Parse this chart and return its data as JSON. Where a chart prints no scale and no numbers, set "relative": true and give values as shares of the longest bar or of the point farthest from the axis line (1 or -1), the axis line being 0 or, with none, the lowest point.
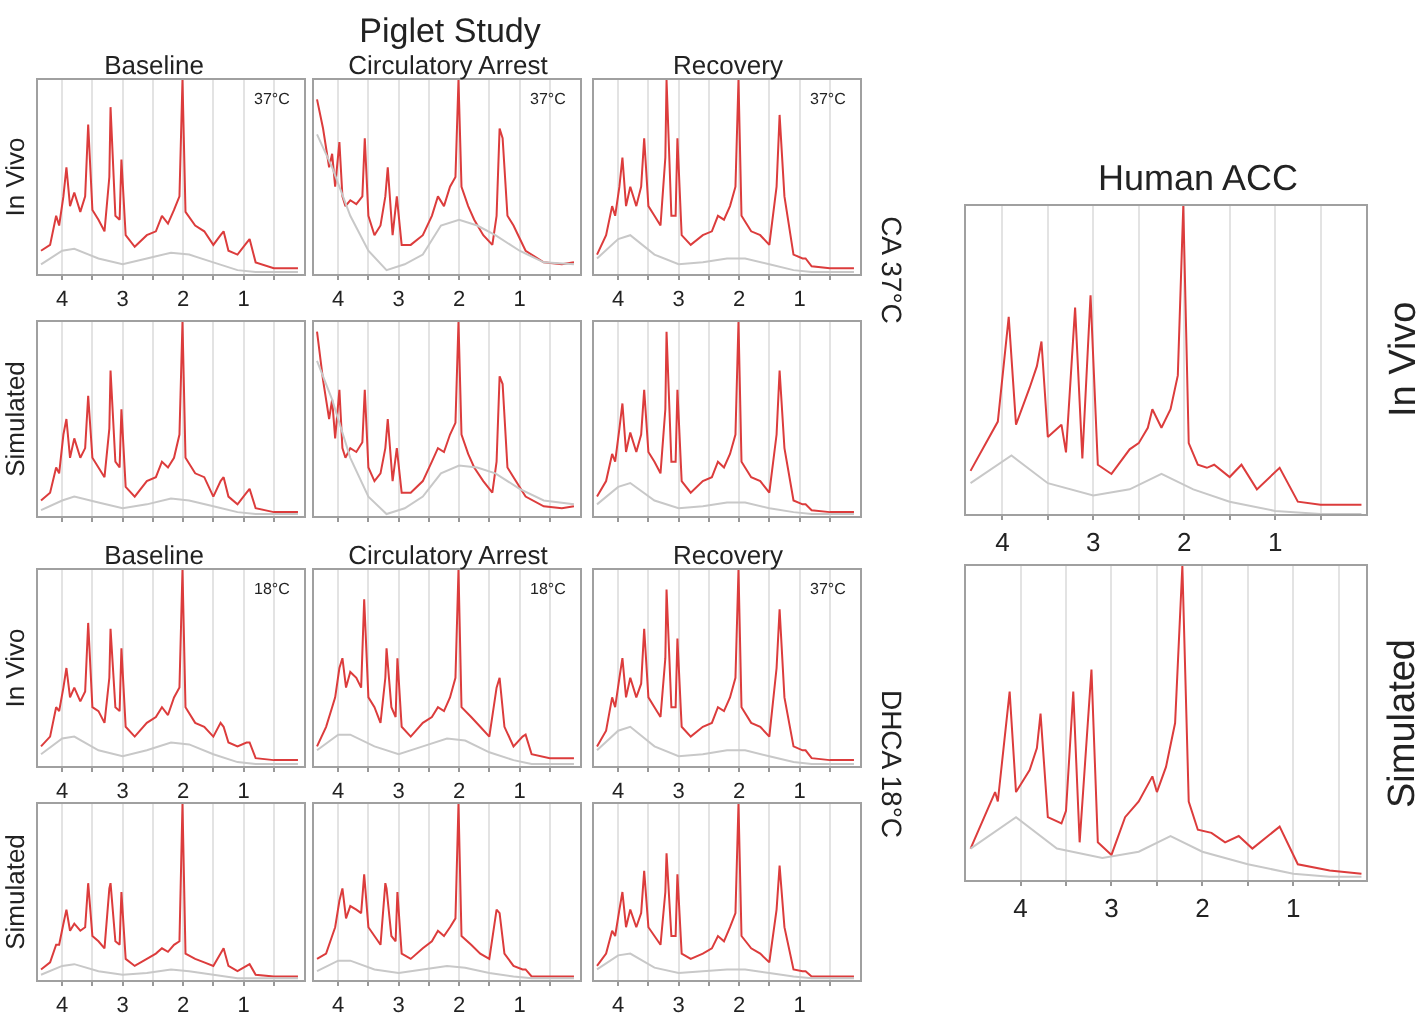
{
  "chart_data": [
    {
      "type": "other",
      "title": "Piglet Study",
      "annotations": [
        "CA 37°C",
        "DHCA 18°C"
      ]
    },
    {
      "type": "line",
      "title": "Baseline",
      "ylabel": "In Vivo",
      "annotations": [
        "37°C"
      ],
      "relative": true,
      "xlim": [
        4.4,
        0
      ],
      "xticks": [
        4,
        {
          "value": 3.5,
          "label": null
        },
        3,
        {
          "value": 2.5,
          "label": null
        },
        2,
        {
          "value": 1.5,
          "label": null
        },
        1,
        {
          "value": 0.5,
          "label": null
        }
      ],
      "grid": "x",
      "tick_labels": "x",
      "x": [
        4.35,
        4.2,
        4.1,
        4.05,
        3.98,
        3.93,
        3.87,
        3.8,
        3.7,
        3.62,
        3.57,
        3.5,
        3.4,
        3.3,
        3.22,
        3.2,
        3.12,
        3.05,
        3.02,
        2.95,
        2.8,
        2.6,
        2.45,
        2.35,
        2.25,
        2.15,
        2.06,
        2.01,
        1.96,
        1.8,
        1.65,
        1.5,
        1.38,
        1.33,
        1.25,
        1.1,
        0.95,
        0.9,
        0.8,
        0.5,
        0.1
      ],
      "series": [
        {
          "color": "#dc3c3c",
          "values": [
            0.12,
            0.15,
            0.3,
            0.25,
            0.4,
            0.55,
            0.35,
            0.42,
            0.32,
            0.4,
            0.77,
            0.33,
            0.28,
            0.22,
            0.5,
            0.86,
            0.3,
            0.28,
            0.59,
            0.2,
            0.14,
            0.2,
            0.22,
            0.3,
            0.26,
            0.33,
            0.4,
            1.0,
            0.32,
            0.25,
            0.22,
            0.15,
            0.2,
            0.22,
            0.12,
            0.1,
            0.16,
            0.18,
            0.06,
            0.03,
            0.03
          ]
        },
        {
          "color": "#c8c8c8",
          "x": [
            4.35,
            4.0,
            3.8,
            3.4,
            3.0,
            2.6,
            2.2,
            1.9,
            1.5,
            1.1,
            0.8,
            0.1
          ],
          "values": [
            0.05,
            0.12,
            0.13,
            0.08,
            0.05,
            0.08,
            0.11,
            0.1,
            0.06,
            0.02,
            0.01,
            0.01
          ]
        }
      ]
    },
    {
      "type": "line",
      "title": "Circulatory Arrest",
      "annotations": [
        "37°C"
      ],
      "relative": true,
      "xlim": [
        4.4,
        0
      ],
      "xticks": [
        4,
        {
          "value": 3.5,
          "label": null
        },
        3,
        {
          "value": 2.5,
          "label": null
        },
        2,
        {
          "value": 1.5,
          "label": null
        },
        1,
        {
          "value": 0.5,
          "label": null
        }
      ],
      "grid": "x",
      "tick_labels": "x",
      "x": [
        4.35,
        4.25,
        4.15,
        4.1,
        4.05,
        3.98,
        3.93,
        3.88,
        3.8,
        3.7,
        3.6,
        3.56,
        3.5,
        3.4,
        3.3,
        3.22,
        3.18,
        3.1,
        3.03,
        2.95,
        2.8,
        2.6,
        2.45,
        2.35,
        2.25,
        2.15,
        2.06,
        2.01,
        1.96,
        1.85,
        1.75,
        1.6,
        1.45,
        1.38,
        1.33,
        1.28,
        1.2,
        1.1,
        0.9,
        0.6,
        0.3,
        0.1
      ],
      "series": [
        {
          "color": "#dc3c3c",
          "values": [
            0.9,
            0.75,
            0.55,
            0.62,
            0.45,
            0.68,
            0.4,
            0.35,
            0.38,
            0.36,
            0.4,
            0.7,
            0.3,
            0.2,
            0.25,
            0.4,
            0.55,
            0.2,
            0.4,
            0.15,
            0.15,
            0.2,
            0.3,
            0.4,
            0.35,
            0.45,
            0.5,
            1.0,
            0.45,
            0.35,
            0.28,
            0.2,
            0.15,
            0.3,
            0.75,
            0.7,
            0.3,
            0.25,
            0.12,
            0.06,
            0.05,
            0.06
          ]
        },
        {
          "color": "#c8c8c8",
          "x": [
            4.35,
            4.1,
            3.8,
            3.5,
            3.2,
            2.9,
            2.6,
            2.3,
            2.0,
            1.7,
            1.4,
            1.0,
            0.6,
            0.1
          ],
          "values": [
            0.72,
            0.55,
            0.3,
            0.12,
            0.02,
            0.05,
            0.1,
            0.25,
            0.28,
            0.25,
            0.2,
            0.12,
            0.06,
            0.05
          ]
        }
      ]
    },
    {
      "type": "line",
      "title": "Recovery",
      "annotations": [
        "37°C"
      ],
      "relative": true,
      "xlim": [
        4.4,
        0
      ],
      "xticks": [
        4,
        {
          "value": 3.5,
          "label": null
        },
        3,
        {
          "value": 2.5,
          "label": null
        },
        2,
        {
          "value": 1.5,
          "label": null
        },
        1,
        {
          "value": 0.5,
          "label": null
        }
      ],
      "grid": "x",
      "tick_labels": "x",
      "x": [
        4.35,
        4.2,
        4.1,
        4.05,
        3.98,
        3.93,
        3.87,
        3.8,
        3.7,
        3.62,
        3.57,
        3.5,
        3.4,
        3.3,
        3.22,
        3.2,
        3.12,
        3.05,
        3.02,
        2.95,
        2.8,
        2.6,
        2.45,
        2.35,
        2.25,
        2.15,
        2.06,
        2.01,
        1.96,
        1.8,
        1.65,
        1.5,
        1.38,
        1.33,
        1.25,
        1.1,
        0.95,
        0.9,
        0.8,
        0.5,
        0.1
      ],
      "series": [
        {
          "color": "#dc3c3c",
          "values": [
            0.1,
            0.2,
            0.35,
            0.3,
            0.45,
            0.6,
            0.35,
            0.45,
            0.35,
            0.45,
            0.7,
            0.35,
            0.3,
            0.25,
            0.6,
            1.0,
            0.3,
            0.3,
            0.7,
            0.2,
            0.15,
            0.2,
            0.22,
            0.3,
            0.28,
            0.35,
            0.45,
            1.0,
            0.3,
            0.22,
            0.2,
            0.15,
            0.45,
            0.82,
            0.4,
            0.1,
            0.08,
            0.08,
            0.04,
            0.03,
            0.03
          ]
        },
        {
          "color": "#c8c8c8",
          "x": [
            4.35,
            4.0,
            3.8,
            3.4,
            3.0,
            2.6,
            2.2,
            1.9,
            1.5,
            1.1,
            0.8,
            0.1
          ],
          "values": [
            0.08,
            0.18,
            0.2,
            0.1,
            0.05,
            0.06,
            0.08,
            0.08,
            0.05,
            0.02,
            0.01,
            0.01
          ]
        }
      ]
    },
    {
      "type": "line",
      "ylabel": "Simulated",
      "relative": true,
      "xlim": [
        4.4,
        0
      ],
      "xticks": [
        4,
        {
          "value": 3.5,
          "label": null
        },
        3,
        {
          "value": 2.5,
          "label": null
        },
        2,
        {
          "value": 1.5,
          "label": null
        },
        1,
        {
          "value": 0.5,
          "label": null
        }
      ],
      "grid": "x",
      "tick_labels": false,
      "x": [
        4.35,
        4.2,
        4.1,
        4.05,
        3.98,
        3.93,
        3.87,
        3.8,
        3.7,
        3.62,
        3.57,
        3.5,
        3.4,
        3.3,
        3.22,
        3.2,
        3.12,
        3.05,
        3.02,
        2.95,
        2.8,
        2.6,
        2.45,
        2.35,
        2.25,
        2.15,
        2.06,
        2.01,
        1.96,
        1.8,
        1.65,
        1.5,
        1.38,
        1.33,
        1.25,
        1.1,
        0.95,
        0.9,
        0.8,
        0.5,
        0.1
      ],
      "series": [
        {
          "color": "#dc3c3c",
          "values": [
            0.08,
            0.12,
            0.25,
            0.22,
            0.42,
            0.5,
            0.3,
            0.4,
            0.3,
            0.35,
            0.62,
            0.3,
            0.25,
            0.2,
            0.45,
            0.75,
            0.28,
            0.25,
            0.55,
            0.15,
            0.1,
            0.18,
            0.2,
            0.28,
            0.25,
            0.3,
            0.42,
            1.0,
            0.3,
            0.22,
            0.2,
            0.1,
            0.18,
            0.2,
            0.1,
            0.06,
            0.12,
            0.14,
            0.04,
            0.02,
            0.02
          ]
        },
        {
          "color": "#c8c8c8",
          "x": [
            4.35,
            4.0,
            3.8,
            3.4,
            3.0,
            2.6,
            2.2,
            1.9,
            1.5,
            1.1,
            0.8,
            0.1
          ],
          "values": [
            0.03,
            0.08,
            0.1,
            0.07,
            0.04,
            0.06,
            0.09,
            0.08,
            0.05,
            0.02,
            0.01,
            0.01
          ]
        }
      ]
    },
    {
      "type": "line",
      "relative": true,
      "xlim": [
        4.4,
        0
      ],
      "xticks": [
        4,
        {
          "value": 3.5,
          "label": null
        },
        3,
        {
          "value": 2.5,
          "label": null
        },
        2,
        {
          "value": 1.5,
          "label": null
        },
        1,
        {
          "value": 0.5,
          "label": null
        }
      ],
      "grid": "x",
      "tick_labels": false,
      "x": [
        4.35,
        4.25,
        4.15,
        4.1,
        4.05,
        3.98,
        3.93,
        3.88,
        3.8,
        3.7,
        3.6,
        3.56,
        3.5,
        3.4,
        3.3,
        3.22,
        3.18,
        3.1,
        3.03,
        2.95,
        2.8,
        2.6,
        2.45,
        2.35,
        2.25,
        2.15,
        2.06,
        2.01,
        1.96,
        1.85,
        1.75,
        1.6,
        1.45,
        1.38,
        1.33,
        1.28,
        1.2,
        1.1,
        0.9,
        0.6,
        0.3,
        0.1
      ],
      "series": [
        {
          "color": "#dc3c3c",
          "values": [
            0.95,
            0.7,
            0.5,
            0.6,
            0.4,
            0.65,
            0.35,
            0.3,
            0.35,
            0.33,
            0.38,
            0.65,
            0.25,
            0.18,
            0.22,
            0.35,
            0.5,
            0.18,
            0.35,
            0.12,
            0.12,
            0.18,
            0.28,
            0.35,
            0.33,
            0.42,
            0.48,
            1.0,
            0.42,
            0.32,
            0.25,
            0.18,
            0.12,
            0.28,
            0.72,
            0.68,
            0.25,
            0.2,
            0.1,
            0.05,
            0.04,
            0.05
          ]
        },
        {
          "color": "#c8c8c8",
          "x": [
            4.35,
            4.1,
            3.8,
            3.5,
            3.2,
            2.9,
            2.6,
            2.3,
            2.0,
            1.7,
            1.4,
            1.0,
            0.6,
            0.1
          ],
          "values": [
            0.8,
            0.6,
            0.3,
            0.1,
            0.01,
            0.04,
            0.1,
            0.22,
            0.26,
            0.25,
            0.22,
            0.14,
            0.08,
            0.06
          ]
        }
      ]
    },
    {
      "type": "line",
      "relative": true,
      "xlim": [
        4.4,
        0
      ],
      "xticks": [
        4,
        {
          "value": 3.5,
          "label": null
        },
        3,
        {
          "value": 2.5,
          "label": null
        },
        2,
        {
          "value": 1.5,
          "label": null
        },
        1,
        {
          "value": 0.5,
          "label": null
        }
      ],
      "grid": "x",
      "tick_labels": false,
      "x": [
        4.35,
        4.2,
        4.1,
        4.05,
        3.98,
        3.93,
        3.87,
        3.8,
        3.7,
        3.62,
        3.57,
        3.5,
        3.4,
        3.3,
        3.22,
        3.2,
        3.12,
        3.05,
        3.02,
        2.95,
        2.8,
        2.6,
        2.45,
        2.35,
        2.25,
        2.15,
        2.06,
        2.01,
        1.96,
        1.8,
        1.65,
        1.5,
        1.38,
        1.33,
        1.25,
        1.1,
        0.95,
        0.9,
        0.8,
        0.5,
        0.1
      ],
      "series": [
        {
          "color": "#dc3c3c",
          "values": [
            0.1,
            0.18,
            0.32,
            0.28,
            0.45,
            0.58,
            0.33,
            0.43,
            0.33,
            0.42,
            0.65,
            0.33,
            0.28,
            0.22,
            0.55,
            0.95,
            0.28,
            0.28,
            0.65,
            0.18,
            0.12,
            0.18,
            0.2,
            0.28,
            0.25,
            0.32,
            0.42,
            1.0,
            0.28,
            0.2,
            0.18,
            0.12,
            0.42,
            0.75,
            0.35,
            0.08,
            0.06,
            0.06,
            0.03,
            0.02,
            0.02
          ]
        },
        {
          "color": "#c8c8c8",
          "x": [
            4.35,
            4.0,
            3.8,
            3.4,
            3.0,
            2.6,
            2.2,
            1.9,
            1.5,
            1.1,
            0.8,
            0.1
          ],
          "values": [
            0.06,
            0.15,
            0.17,
            0.08,
            0.04,
            0.05,
            0.07,
            0.07,
            0.04,
            0.02,
            0.01,
            0.01
          ]
        }
      ]
    },
    {
      "type": "line",
      "title": "Baseline",
      "ylabel": "In Vivo",
      "annotations": [
        "18°C"
      ],
      "relative": true,
      "xlim": [
        4.4,
        0
      ],
      "xticks": [
        4,
        {
          "value": 3.5,
          "label": null
        },
        3,
        {
          "value": 2.5,
          "label": null
        },
        2,
        {
          "value": 1.5,
          "label": null
        },
        1,
        {
          "value": 0.5,
          "label": null
        }
      ],
      "grid": "x",
      "tick_labels": "x",
      "x": [
        4.35,
        4.2,
        4.1,
        4.05,
        3.98,
        3.93,
        3.87,
        3.8,
        3.7,
        3.62,
        3.57,
        3.5,
        3.4,
        3.3,
        3.22,
        3.2,
        3.12,
        3.05,
        3.02,
        2.95,
        2.8,
        2.6,
        2.45,
        2.35,
        2.25,
        2.15,
        2.06,
        2.01,
        1.96,
        1.8,
        1.65,
        1.5,
        1.38,
        1.33,
        1.25,
        1.1,
        0.95,
        0.9,
        0.8,
        0.5,
        0.1
      ],
      "series": [
        {
          "color": "#dc3c3c",
          "values": [
            0.1,
            0.15,
            0.3,
            0.28,
            0.4,
            0.5,
            0.35,
            0.4,
            0.33,
            0.38,
            0.73,
            0.3,
            0.28,
            0.22,
            0.45,
            0.7,
            0.3,
            0.28,
            0.6,
            0.2,
            0.15,
            0.22,
            0.25,
            0.3,
            0.26,
            0.35,
            0.4,
            1.0,
            0.3,
            0.22,
            0.2,
            0.15,
            0.22,
            0.2,
            0.12,
            0.1,
            0.12,
            0.12,
            0.04,
            0.03,
            0.03
          ]
        },
        {
          "color": "#c8c8c8",
          "x": [
            4.35,
            4.0,
            3.8,
            3.4,
            3.0,
            2.6,
            2.2,
            1.9,
            1.5,
            1.1,
            0.8,
            0.1
          ],
          "values": [
            0.06,
            0.14,
            0.15,
            0.08,
            0.05,
            0.08,
            0.12,
            0.11,
            0.06,
            0.02,
            0.01,
            0.01
          ]
        }
      ]
    },
    {
      "type": "line",
      "title": "Circulatory Arrest",
      "annotations": [
        "18°C"
      ],
      "relative": true,
      "xlim": [
        4.4,
        0
      ],
      "xticks": [
        4,
        {
          "value": 3.5,
          "label": null
        },
        3,
        {
          "value": 2.5,
          "label": null
        },
        2,
        {
          "value": 1.5,
          "label": null
        },
        1,
        {
          "value": 0.5,
          "label": null
        }
      ],
      "grid": "x",
      "tick_labels": "x",
      "x": [
        4.35,
        4.2,
        4.1,
        4.05,
        3.98,
        3.93,
        3.87,
        3.8,
        3.7,
        3.62,
        3.57,
        3.5,
        3.4,
        3.3,
        3.22,
        3.2,
        3.12,
        3.05,
        3.02,
        2.95,
        2.8,
        2.6,
        2.45,
        2.35,
        2.25,
        2.15,
        2.06,
        2.01,
        1.96,
        1.8,
        1.65,
        1.5,
        1.38,
        1.33,
        1.25,
        1.1,
        0.95,
        0.9,
        0.8,
        0.5,
        0.1
      ],
      "series": [
        {
          "color": "#dc3c3c",
          "values": [
            0.1,
            0.2,
            0.3,
            0.35,
            0.5,
            0.55,
            0.4,
            0.48,
            0.45,
            0.4,
            0.85,
            0.35,
            0.3,
            0.22,
            0.45,
            0.6,
            0.3,
            0.25,
            0.55,
            0.2,
            0.15,
            0.22,
            0.25,
            0.3,
            0.28,
            0.35,
            0.45,
            1.0,
            0.3,
            0.25,
            0.2,
            0.15,
            0.4,
            0.45,
            0.2,
            0.1,
            0.15,
            0.16,
            0.06,
            0.04,
            0.04
          ]
        },
        {
          "color": "#c8c8c8",
          "x": [
            4.35,
            4.0,
            3.8,
            3.4,
            3.0,
            2.6,
            2.2,
            1.9,
            1.5,
            1.1,
            0.8,
            0.1
          ],
          "values": [
            0.08,
            0.16,
            0.16,
            0.1,
            0.06,
            0.1,
            0.14,
            0.13,
            0.07,
            0.03,
            0.01,
            0.01
          ]
        }
      ]
    },
    {
      "type": "line",
      "title": "Recovery",
      "annotations": [
        "37°C"
      ],
      "relative": true,
      "xlim": [
        4.4,
        0
      ],
      "xticks": [
        4,
        {
          "value": 3.5,
          "label": null
        },
        3,
        {
          "value": 2.5,
          "label": null
        },
        2,
        {
          "value": 1.5,
          "label": null
        },
        1,
        {
          "value": 0.5,
          "label": null
        }
      ],
      "grid": "x",
      "tick_labels": "x",
      "x": [
        4.35,
        4.2,
        4.1,
        4.05,
        3.98,
        3.93,
        3.87,
        3.8,
        3.7,
        3.62,
        3.57,
        3.5,
        3.4,
        3.3,
        3.22,
        3.2,
        3.12,
        3.05,
        3.02,
        2.95,
        2.8,
        2.6,
        2.45,
        2.35,
        2.25,
        2.15,
        2.06,
        2.01,
        1.96,
        1.8,
        1.65,
        1.5,
        1.38,
        1.33,
        1.25,
        1.1,
        0.95,
        0.9,
        0.8,
        0.5,
        0.1
      ],
      "series": [
        {
          "color": "#dc3c3c",
          "values": [
            0.1,
            0.18,
            0.35,
            0.3,
            0.45,
            0.55,
            0.35,
            0.45,
            0.35,
            0.42,
            0.7,
            0.35,
            0.3,
            0.25,
            0.55,
            0.9,
            0.3,
            0.3,
            0.65,
            0.2,
            0.15,
            0.2,
            0.22,
            0.3,
            0.28,
            0.35,
            0.45,
            1.0,
            0.3,
            0.22,
            0.2,
            0.15,
            0.5,
            0.8,
            0.35,
            0.1,
            0.08,
            0.08,
            0.04,
            0.03,
            0.03
          ]
        },
        {
          "color": "#c8c8c8",
          "x": [
            4.35,
            4.0,
            3.8,
            3.4,
            3.0,
            2.6,
            2.2,
            1.9,
            1.5,
            1.1,
            0.8,
            0.1
          ],
          "values": [
            0.08,
            0.18,
            0.2,
            0.1,
            0.05,
            0.06,
            0.08,
            0.08,
            0.05,
            0.02,
            0.01,
            0.01
          ]
        }
      ]
    },
    {
      "type": "line",
      "ylabel": "Simulated",
      "relative": true,
      "xlim": [
        4.4,
        0
      ],
      "xticks": [
        4,
        {
          "value": 3.5,
          "label": null
        },
        3,
        {
          "value": 2.5,
          "label": null
        },
        2,
        {
          "value": 1.5,
          "label": null
        },
        1,
        {
          "value": 0.5,
          "label": null
        }
      ],
      "grid": "x",
      "tick_labels": "x",
      "x": [
        4.35,
        4.2,
        4.1,
        4.05,
        3.98,
        3.93,
        3.87,
        3.8,
        3.7,
        3.62,
        3.57,
        3.5,
        3.4,
        3.3,
        3.22,
        3.2,
        3.12,
        3.05,
        3.02,
        2.95,
        2.8,
        2.6,
        2.45,
        2.35,
        2.25,
        2.15,
        2.06,
        2.01,
        1.96,
        1.8,
        1.65,
        1.5,
        1.38,
        1.33,
        1.25,
        1.1,
        0.95,
        0.9,
        0.8,
        0.5,
        0.1
      ],
      "series": [
        {
          "color": "#dc3c3c",
          "values": [
            0.06,
            0.1,
            0.2,
            0.2,
            0.32,
            0.4,
            0.28,
            0.32,
            0.28,
            0.3,
            0.55,
            0.25,
            0.22,
            0.18,
            0.52,
            0.55,
            0.22,
            0.2,
            0.5,
            0.12,
            0.08,
            0.12,
            0.15,
            0.18,
            0.16,
            0.2,
            0.22,
            1.0,
            0.15,
            0.12,
            0.1,
            0.08,
            0.15,
            0.18,
            0.08,
            0.05,
            0.08,
            0.09,
            0.03,
            0.02,
            0.02
          ]
        },
        {
          "color": "#c8c8c8",
          "x": [
            4.35,
            4.0,
            3.8,
            3.4,
            3.0,
            2.6,
            2.2,
            1.9,
            1.5,
            1.1,
            0.8,
            0.1
          ],
          "values": [
            0.03,
            0.08,
            0.09,
            0.05,
            0.03,
            0.04,
            0.06,
            0.05,
            0.03,
            0.01,
            0.01,
            0.01
          ]
        }
      ]
    },
    {
      "type": "line",
      "relative": true,
      "xlim": [
        4.4,
        0
      ],
      "xticks": [
        4,
        {
          "value": 3.5,
          "label": null
        },
        3,
        {
          "value": 2.5,
          "label": null
        },
        2,
        {
          "value": 1.5,
          "label": null
        },
        1,
        {
          "value": 0.5,
          "label": null
        }
      ],
      "grid": "x",
      "tick_labels": "x",
      "x": [
        4.35,
        4.2,
        4.1,
        4.05,
        3.98,
        3.93,
        3.87,
        3.8,
        3.7,
        3.62,
        3.57,
        3.5,
        3.4,
        3.3,
        3.22,
        3.2,
        3.12,
        3.05,
        3.02,
        2.95,
        2.8,
        2.6,
        2.45,
        2.35,
        2.25,
        2.15,
        2.06,
        2.01,
        1.96,
        1.8,
        1.65,
        1.5,
        1.38,
        1.33,
        1.25,
        1.1,
        0.95,
        0.9,
        0.8,
        0.5,
        0.1
      ],
      "series": [
        {
          "color": "#dc3c3c",
          "values": [
            0.12,
            0.15,
            0.25,
            0.3,
            0.45,
            0.52,
            0.35,
            0.42,
            0.4,
            0.38,
            0.6,
            0.3,
            0.25,
            0.2,
            0.55,
            0.52,
            0.25,
            0.22,
            0.5,
            0.15,
            0.12,
            0.18,
            0.22,
            0.28,
            0.25,
            0.3,
            0.35,
            1.0,
            0.25,
            0.2,
            0.15,
            0.12,
            0.4,
            0.38,
            0.15,
            0.08,
            0.06,
            0.06,
            0.02,
            0.02,
            0.02
          ]
        },
        {
          "color": "#c8c8c8",
          "x": [
            4.35,
            4.0,
            3.8,
            3.4,
            3.0,
            2.6,
            2.2,
            1.9,
            1.5,
            1.1,
            0.8,
            0.1
          ],
          "values": [
            0.05,
            0.11,
            0.11,
            0.06,
            0.04,
            0.06,
            0.08,
            0.07,
            0.04,
            0.02,
            0.01,
            0.01
          ]
        }
      ]
    },
    {
      "type": "line",
      "relative": true,
      "xlim": [
        4.4,
        0
      ],
      "xticks": [
        4,
        {
          "value": 3.5,
          "label": null
        },
        3,
        {
          "value": 2.5,
          "label": null
        },
        2,
        {
          "value": 1.5,
          "label": null
        },
        1,
        {
          "value": 0.5,
          "label": null
        }
      ],
      "grid": "x",
      "tick_labels": "x",
      "x": [
        4.35,
        4.2,
        4.1,
        4.05,
        3.98,
        3.93,
        3.87,
        3.8,
        3.7,
        3.62,
        3.57,
        3.5,
        3.4,
        3.3,
        3.22,
        3.2,
        3.12,
        3.05,
        3.02,
        2.95,
        2.8,
        2.6,
        2.45,
        2.35,
        2.25,
        2.15,
        2.06,
        2.01,
        1.96,
        1.8,
        1.65,
        1.5,
        1.38,
        1.33,
        1.25,
        1.1,
        0.95,
        0.9,
        0.8,
        0.5,
        0.1
      ],
      "series": [
        {
          "color": "#dc3c3c",
          "values": [
            0.08,
            0.15,
            0.28,
            0.25,
            0.4,
            0.5,
            0.3,
            0.4,
            0.3,
            0.38,
            0.62,
            0.3,
            0.25,
            0.2,
            0.5,
            0.72,
            0.25,
            0.25,
            0.6,
            0.15,
            0.12,
            0.15,
            0.18,
            0.25,
            0.22,
            0.3,
            0.38,
            1.0,
            0.25,
            0.18,
            0.15,
            0.1,
            0.4,
            0.65,
            0.3,
            0.06,
            0.05,
            0.05,
            0.02,
            0.02,
            0.02
          ]
        },
        {
          "color": "#c8c8c8",
          "x": [
            4.35,
            4.0,
            3.8,
            3.4,
            3.0,
            2.6,
            2.2,
            1.9,
            1.5,
            1.1,
            0.8,
            0.1
          ],
          "values": [
            0.06,
            0.14,
            0.15,
            0.07,
            0.04,
            0.05,
            0.06,
            0.06,
            0.04,
            0.02,
            0.01,
            0.01
          ]
        }
      ]
    },
    {
      "type": "line",
      "title": "Human ACC",
      "y2label": "In Vivo",
      "relative": true,
      "xlim": [
        4.4,
        0
      ],
      "xticks": [
        4,
        {
          "value": 3.5,
          "label": null
        },
        3,
        {
          "value": 2.5,
          "label": null
        },
        2,
        {
          "value": 1.5,
          "label": null
        },
        1,
        {
          "value": 0.5,
          "label": null
        }
      ],
      "grid": "x",
      "tick_labels": "x",
      "x": [
        4.35,
        4.05,
        3.93,
        3.85,
        3.7,
        3.62,
        3.57,
        3.5,
        3.35,
        3.3,
        3.2,
        3.12,
        3.03,
        2.95,
        2.8,
        2.6,
        2.5,
        2.4,
        2.35,
        2.25,
        2.15,
        2.07,
        2.01,
        1.95,
        1.85,
        1.75,
        1.67,
        1.5,
        1.37,
        1.2,
        0.95,
        0.75,
        0.5,
        0.05
      ],
      "series": [
        {
          "color": "#dc3c3c",
          "values": [
            0.14,
            0.3,
            0.64,
            0.29,
            0.41,
            0.48,
            0.56,
            0.25,
            0.29,
            0.2,
            0.67,
            0.18,
            0.71,
            0.16,
            0.13,
            0.21,
            0.23,
            0.28,
            0.34,
            0.28,
            0.34,
            0.45,
            1.0,
            0.23,
            0.16,
            0.15,
            0.16,
            0.12,
            0.16,
            0.08,
            0.15,
            0.04,
            0.03,
            0.03
          ]
        },
        {
          "color": "#c8c8c8",
          "x": [
            4.35,
            3.9,
            3.5,
            3.0,
            2.6,
            2.25,
            1.9,
            1.5,
            1.0,
            0.5,
            0.05
          ],
          "values": [
            0.1,
            0.19,
            0.1,
            0.06,
            0.08,
            0.13,
            0.08,
            0.04,
            0.01,
            0,
            0
          ]
        }
      ]
    },
    {
      "type": "line",
      "y2label": "Simulated",
      "relative": true,
      "xlim": [
        4.6,
        0.2
      ],
      "xticks": [
        4,
        {
          "value": 3.5,
          "label": null
        },
        3,
        {
          "value": 2.5,
          "label": null
        },
        2,
        {
          "value": 1.5,
          "label": null
        },
        1,
        {
          "value": 0.5,
          "label": null
        }
      ],
      "grid": "x",
      "tick_labels": "x",
      "x": [
        4.55,
        4.28,
        4.25,
        4.12,
        4.05,
        3.9,
        3.82,
        3.78,
        3.7,
        3.55,
        3.5,
        3.42,
        3.35,
        3.22,
        3.15,
        3.0,
        2.85,
        2.7,
        2.55,
        2.5,
        2.4,
        2.3,
        2.22,
        2.15,
        2.05,
        1.9,
        1.75,
        1.6,
        1.45,
        1.15,
        0.95,
        0.6,
        0.25
      ],
      "series": [
        {
          "color": "#dc3c3c",
          "values": [
            0.1,
            0.28,
            0.25,
            0.6,
            0.28,
            0.35,
            0.42,
            0.53,
            0.2,
            0.18,
            0.22,
            0.6,
            0.12,
            0.67,
            0.12,
            0.08,
            0.2,
            0.25,
            0.33,
            0.28,
            0.36,
            0.5,
            1.0,
            0.25,
            0.16,
            0.15,
            0.12,
            0.14,
            0.1,
            0.17,
            0.05,
            0.03,
            0.02
          ]
        },
        {
          "color": "#c8c8c8",
          "x": [
            4.55,
            4.05,
            3.6,
            3.1,
            2.7,
            2.35,
            2.0,
            1.5,
            1.0,
            0.6,
            0.25
          ],
          "values": [
            0.1,
            0.2,
            0.1,
            0.07,
            0.09,
            0.14,
            0.09,
            0.05,
            0.02,
            0.01,
            0.01
          ]
        }
      ]
    }
  ]
}
